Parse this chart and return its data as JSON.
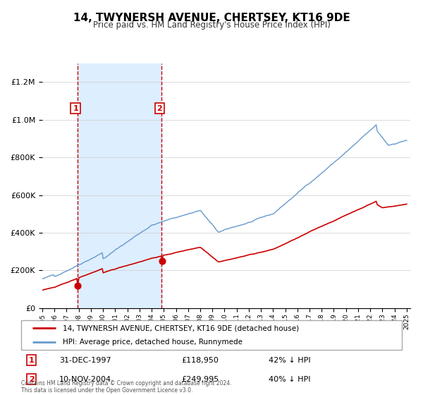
{
  "title": "14, TWYNERSH AVENUE, CHERTSEY, KT16 9DE",
  "subtitle": "Price paid vs. HM Land Registry's House Price Index (HPI)",
  "legend_line1": "14, TWYNERSH AVENUE, CHERTSEY, KT16 9DE (detached house)",
  "legend_line2": "HPI: Average price, detached house, Runnymede",
  "sale1_date": "31-DEC-1997",
  "sale1_price": 118950,
  "sale1_hpi": "42% ↓ HPI",
  "sale2_date": "10-NOV-2004",
  "sale2_price": 249995,
  "sale2_hpi": "40% ↓ HPI",
  "footnote": "Contains HM Land Registry data © Crown copyright and database right 2024.\nThis data is licensed under the Open Government Licence v3.0.",
  "red_color": "#cc0000",
  "blue_color": "#6699cc",
  "shaded_color": "#ddeeff",
  "sale1_price_val": 118950,
  "sale2_price_val": 249995,
  "ylim_max": 1300000
}
